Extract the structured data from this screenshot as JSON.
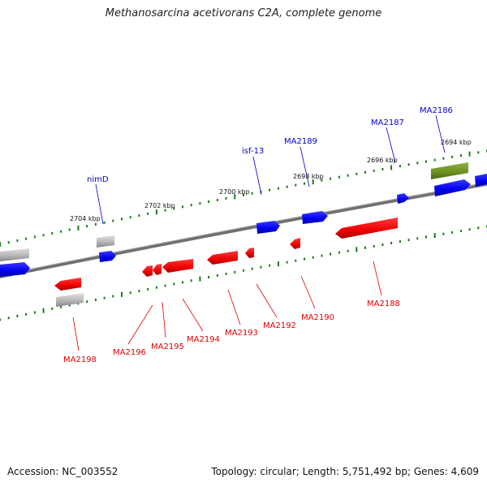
{
  "title": "Methanosarcina acetivorans C2A, complete genome",
  "footer": {
    "accession": "Accession: NC_003552",
    "summary": "Topology: circular; Length: 5,751,492 bp; Genes: 4,609"
  },
  "colors": {
    "forward_gene": "#0000ee",
    "reverse_gene": "#ee0000",
    "other_gene": "#aaaaaa",
    "rna_gene": "#6b8e23",
    "backbone": "#808080",
    "tick": "#1a7a1a",
    "forward_label": "#0000cc",
    "reverse_label": "#dd0000"
  },
  "kbp_labels": [
    "2704 kbp",
    "2702 kbp",
    "2700 kbp",
    "2698 kbp",
    "2696 kbp",
    "2694 kbp"
  ],
  "forward_labels": [
    "nimD",
    "isf-13",
    "MA2189",
    "MA2187",
    "MA2186"
  ],
  "reverse_labels": [
    "MA2198",
    "MA2196",
    "MA2195",
    "MA2194",
    "MA2193",
    "MA2192",
    "MA2190",
    "MA2188"
  ]
}
